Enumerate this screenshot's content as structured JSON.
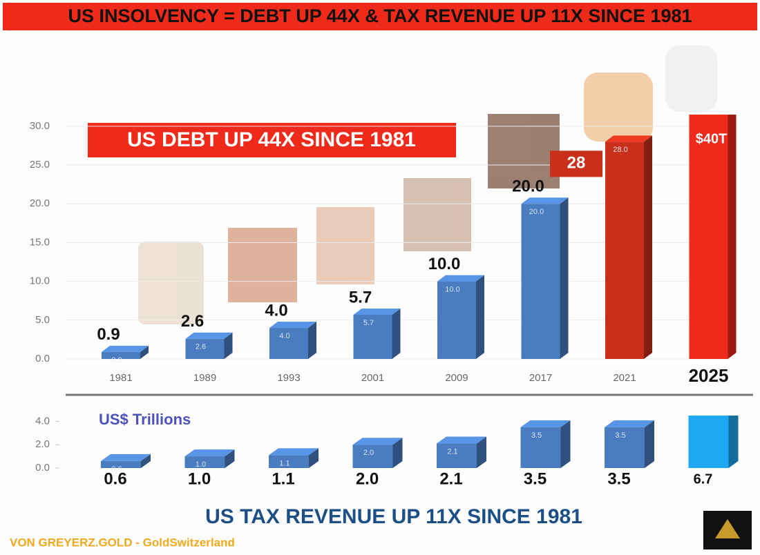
{
  "header": {
    "title": "US INSOLVENCY = DEBT UP 44X & TAX REVENUE UP 11X SINCE 1981"
  },
  "footer": {
    "text": "VON GREYERZ.GOLD - GoldSwitzerland"
  },
  "chart_data": [
    {
      "type": "bar3d",
      "title": "US DEBT UP 44X SINCE 1981",
      "categories": [
        "1981",
        "1989",
        "1993",
        "2001",
        "2009",
        "2017",
        "2021",
        "2025"
      ],
      "values": [
        0.9,
        2.6,
        4.0,
        5.7,
        10.0,
        20.0,
        28.0,
        40
      ],
      "value_labels": [
        "0.9",
        "2.6",
        "4.0",
        "5.7",
        "10.0",
        "20.0",
        "28",
        "$40T"
      ],
      "inner_labels": [
        "0.9",
        "2.6",
        "4.0",
        "5.7",
        "10.0",
        "20.0",
        "28.0",
        null
      ],
      "colors": [
        "#4a7cc0",
        "#4a7cc0",
        "#4a7cc0",
        "#4a7cc0",
        "#4a7cc0",
        "#4a7cc0",
        "#c9301c",
        "#ee2a1a"
      ],
      "ylim": [
        0,
        31.5
      ],
      "yticks": [
        {
          "value": 0,
          "label": "0.0"
        },
        {
          "value": 5,
          "label": "5.0"
        },
        {
          "value": 10,
          "label": "10.0"
        },
        {
          "value": 15,
          "label": "15.0"
        },
        {
          "value": 20,
          "label": "20.0"
        },
        {
          "value": 25,
          "label": "25.0"
        },
        {
          "value": 30,
          "label": "30.0"
        }
      ],
      "grid": true
    },
    {
      "type": "bar3d",
      "title": "US TAX REVENUE UP 11X SINCE 1981",
      "unit": "US$ Trillions",
      "values": [
        0.6,
        1.0,
        1.1,
        2.0,
        2.1,
        3.5,
        3.5,
        6.7
      ],
      "value_labels": [
        "0.6",
        "1.0",
        "1.1",
        "2.0",
        "2.1",
        "3.5",
        "3.5",
        "6.7"
      ],
      "inner_labels": [
        "0.6",
        "1.0",
        "1.1",
        "2.0",
        "2.1",
        "3.5",
        "3.5",
        null
      ],
      "colors": [
        "#4a7cc0",
        "#4a7cc0",
        "#4a7cc0",
        "#4a7cc0",
        "#4a7cc0",
        "#4a7cc0",
        "#4a7cc0",
        "#1ea7f2"
      ],
      "ylim": [
        0,
        4.5
      ],
      "yticks": [
        {
          "value": 0,
          "label": "0.0"
        },
        {
          "value": 2,
          "label": "2.0"
        },
        {
          "value": 4,
          "label": "4.0"
        }
      ],
      "grid": false
    }
  ]
}
